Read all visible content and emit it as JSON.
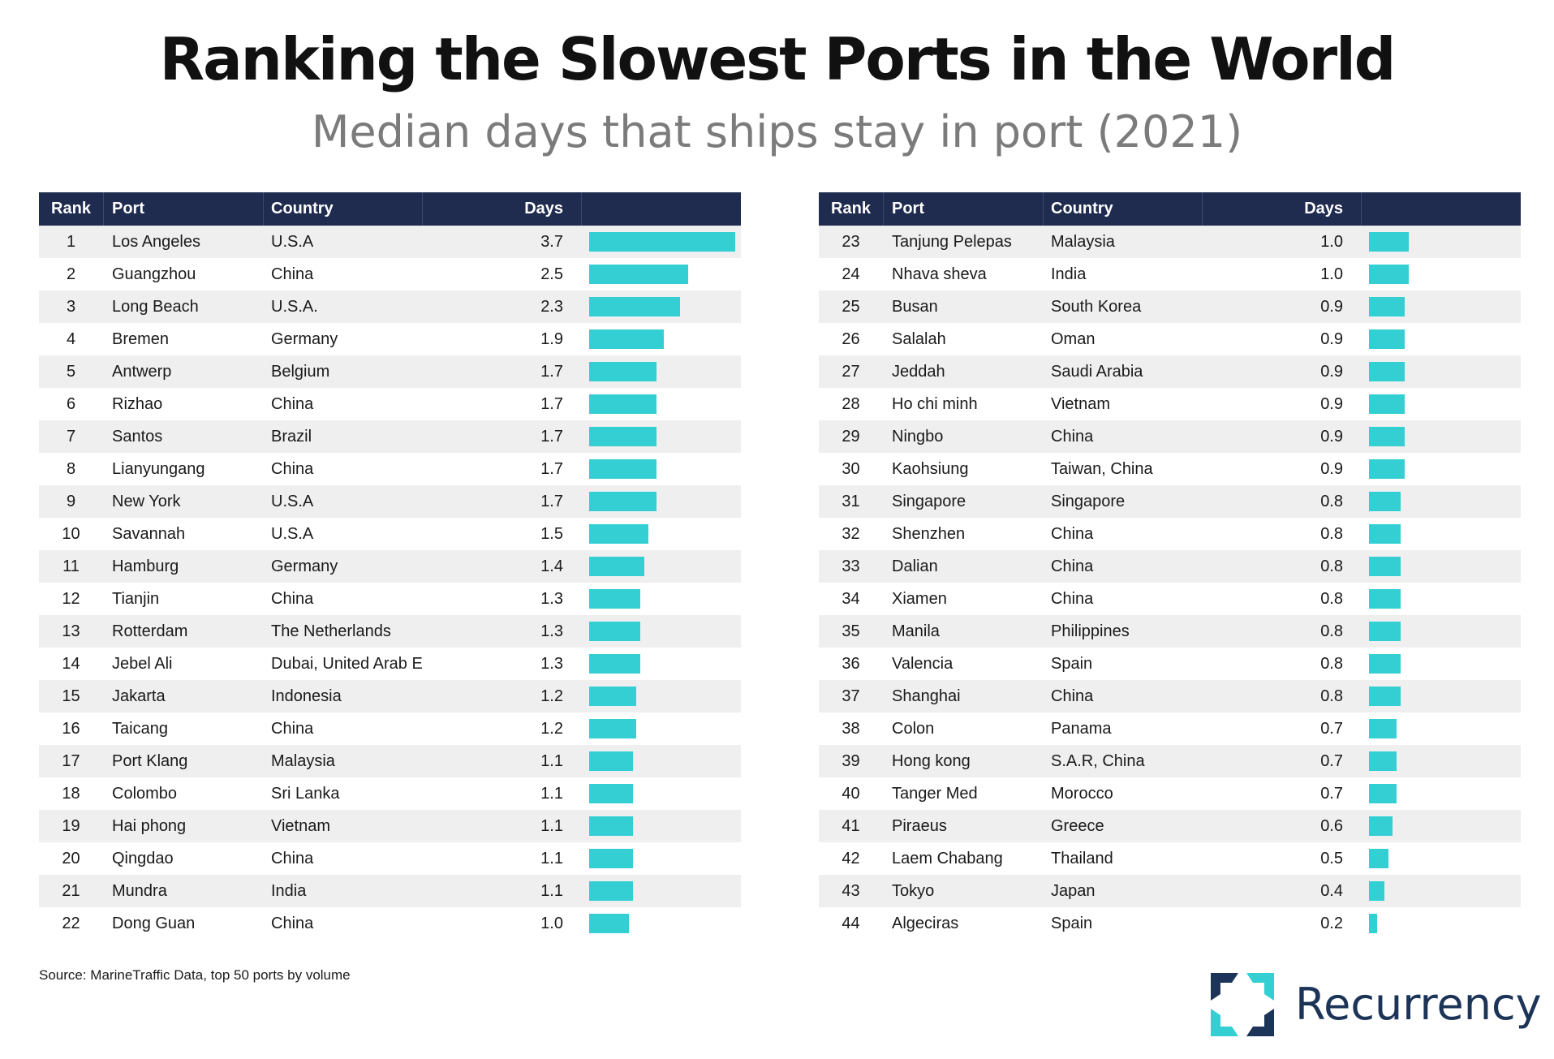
{
  "chart_data": {
    "type": "table",
    "title": "Ranking the Slowest Ports in the World",
    "subtitle": "Median days that ships stay in port (2021)",
    "columns": [
      "Rank",
      "Port",
      "Country",
      "Days"
    ],
    "rows": [
      {
        "rank": "1",
        "port": "Los Angeles",
        "country": "U.S.A",
        "days": 3.7
      },
      {
        "rank": "2",
        "port": "Guangzhou",
        "country": "China",
        "days": 2.5
      },
      {
        "rank": "3",
        "port": "Long Beach",
        "country": "U.S.A.",
        "days": 2.3
      },
      {
        "rank": "4",
        "port": "Bremen",
        "country": "Germany",
        "days": 1.9
      },
      {
        "rank": "5",
        "port": "Antwerp",
        "country": "Belgium",
        "days": 1.7
      },
      {
        "rank": "6",
        "port": "Rizhao",
        "country": "China",
        "days": 1.7
      },
      {
        "rank": "7",
        "port": "Santos",
        "country": "Brazil",
        "days": 1.7
      },
      {
        "rank": "8",
        "port": "Lianyungang",
        "country": "China",
        "days": 1.7
      },
      {
        "rank": "9",
        "port": "New York",
        "country": "U.S.A",
        "days": 1.7
      },
      {
        "rank": "10",
        "port": "Savannah",
        "country": "U.S.A",
        "days": 1.5
      },
      {
        "rank": "11",
        "port": "Hamburg",
        "country": "Germany",
        "days": 1.4
      },
      {
        "rank": "12",
        "port": "Tianjin",
        "country": "China",
        "days": 1.3
      },
      {
        "rank": "13",
        "port": "Rotterdam",
        "country": "The Netherlands",
        "days": 1.3
      },
      {
        "rank": "14",
        "port": "Jebel Ali",
        "country": "Dubai, United Arab Emirates",
        "days": 1.3
      },
      {
        "rank": "15",
        "port": "Jakarta",
        "country": "Indonesia",
        "days": 1.2
      },
      {
        "rank": "16",
        "port": "Taicang",
        "country": "China",
        "days": 1.2
      },
      {
        "rank": "17",
        "port": "Port Klang",
        "country": "Malaysia",
        "days": 1.1
      },
      {
        "rank": "18",
        "port": "Colombo",
        "country": "Sri Lanka",
        "days": 1.1
      },
      {
        "rank": "19",
        "port": "Hai phong",
        "country": "Vietnam",
        "days": 1.1
      },
      {
        "rank": "20",
        "port": "Qingdao",
        "country": "China",
        "days": 1.1
      },
      {
        "rank": "21",
        "port": "Mundra",
        "country": "India",
        "days": 1.1
      },
      {
        "rank": "22",
        "port": "Dong Guan",
        "country": "China",
        "days": 1.0
      },
      {
        "rank": "23",
        "port": "Tanjung Pelepas",
        "country": "Malaysia",
        "days": 1.0
      },
      {
        "rank": "24",
        "port": "Nhava sheva",
        "country": "India",
        "days": 1.0
      },
      {
        "rank": "25",
        "port": "Busan",
        "country": "South Korea",
        "days": 0.9
      },
      {
        "rank": "26",
        "port": "Salalah",
        "country": "Oman",
        "days": 0.9
      },
      {
        "rank": "27",
        "port": "Jeddah",
        "country": "Saudi Arabia",
        "days": 0.9
      },
      {
        "rank": "28",
        "port": "Ho chi minh",
        "country": "Vietnam",
        "days": 0.9
      },
      {
        "rank": "29",
        "port": "Ningbo",
        "country": "China",
        "days": 0.9
      },
      {
        "rank": "30",
        "port": "Kaohsiung",
        "country": "Taiwan, China",
        "days": 0.9
      },
      {
        "rank": "31",
        "port": "Singapore",
        "country": "Singapore",
        "days": 0.8
      },
      {
        "rank": "32",
        "port": "Shenzhen",
        "country": "China",
        "days": 0.8
      },
      {
        "rank": "33",
        "port": "Dalian",
        "country": "China",
        "days": 0.8
      },
      {
        "rank": "34",
        "port": "Xiamen",
        "country": "China",
        "days": 0.8
      },
      {
        "rank": "35",
        "port": "Manila",
        "country": "Philippines",
        "days": 0.8
      },
      {
        "rank": "36",
        "port": "Valencia",
        "country": "Spain",
        "days": 0.8
      },
      {
        "rank": "37",
        "port": "Shanghai",
        "country": "China",
        "days": 0.8
      },
      {
        "rank": "38",
        "port": "Colon",
        "country": "Panama",
        "days": 0.7
      },
      {
        "rank": "39",
        "port": "Hong kong",
        "country": "S.A.R, China",
        "days": 0.7
      },
      {
        "rank": "40",
        "port": "Tanger Med",
        "country": "Morocco",
        "days": 0.7
      },
      {
        "rank": "41",
        "port": "Piraeus",
        "country": "Greece",
        "days": 0.6
      },
      {
        "rank": "42",
        "port": "Laem Chabang",
        "country": "Thailand",
        "days": 0.5
      },
      {
        "rank": "43",
        "port": "Tokyo",
        "country": "Japan",
        "days": 0.4
      },
      {
        "rank": "44",
        "port": "Algeciras",
        "country": "Spain",
        "days": 0.2
      }
    ],
    "bar_max": 3.7,
    "bar_color": "#33cfd3",
    "header_color": "#1f2b4f"
  },
  "footer": {
    "source": "Source: MarineTraffic Data, top 50 ports by volume",
    "brand": "Recurrency"
  }
}
